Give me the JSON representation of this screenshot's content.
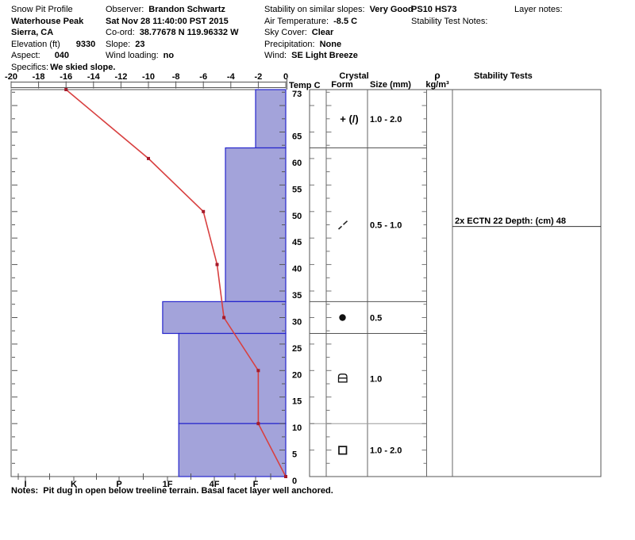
{
  "header": {
    "title": "Snow Pit Profile",
    "location": "Waterhouse Peak",
    "region": "Sierra, CA",
    "elevation_label": "Elevation (ft)",
    "elevation_value": "9330",
    "aspect_label": "Aspect:",
    "aspect_value": "040",
    "specifics_label": "Specifics:",
    "specifics_value": "We skied slope.",
    "observer_label": "Observer:",
    "observer_value": "Brandon Schwartz",
    "datetime": "Sat Nov 28 11:40:00 PST 2015",
    "coord_label": "Co-ord:",
    "coord_value": "38.77678 N 119.96332 W",
    "slope_label": "Slope:",
    "slope_value": "23",
    "wind_loading_label": "Wind loading:",
    "wind_loading_value": "no",
    "stability_slopes_label": "Stability on similar slopes:",
    "stability_slopes_value": "Very Good",
    "air_temp_label": "Air Temperature:",
    "air_temp_value": "-8.5 C",
    "sky_cover_label": "Sky Cover:",
    "sky_cover_value": "Clear",
    "precip_label": "Precipitation:",
    "precip_value": "None",
    "wind_label": "Wind:",
    "wind_value": "SE Light Breeze",
    "pit_code": "PS10 HS73",
    "stability_test_notes_label": "Stability Test Notes:",
    "layer_notes_label": "Layer notes:"
  },
  "notes": {
    "label": "Notes:",
    "text": "Pit dug in open below treeline terrain. Basal facet layer well anchored."
  },
  "chart_data": {
    "type": "composite",
    "description": "Snow pit profile: red temperature line plotted over blue hand-hardness layer bars, with per-layer crystal form / size table and stability test column",
    "temp_axis": {
      "title": "Temp C",
      "min": -20,
      "max": 0,
      "tick_labels": [
        "-20",
        "-18",
        "-16",
        "-14",
        "-12",
        "-10",
        "-8",
        "-6",
        "-4",
        "-2",
        "0"
      ]
    },
    "depth_axis": {
      "unit": "cm",
      "min": 0,
      "max": 73,
      "tick_labels": [
        73,
        65,
        60,
        55,
        50,
        45,
        40,
        35,
        30,
        25,
        20,
        15,
        10,
        5,
        0
      ]
    },
    "hardness_axis": {
      "categories": [
        "I",
        "K",
        "P",
        "1F",
        "4F",
        "F"
      ]
    },
    "temperature_series": {
      "type": "line",
      "points": [
        {
          "temp_c": -16,
          "depth_cm": 73
        },
        {
          "temp_c": -10,
          "depth_cm": 60
        },
        {
          "temp_c": -6,
          "depth_cm": 50
        },
        {
          "temp_c": -5,
          "depth_cm": 40
        },
        {
          "temp_c": -4.5,
          "depth_cm": 30
        },
        {
          "temp_c": -2,
          "depth_cm": 20
        },
        {
          "temp_c": -2,
          "depth_cm": 10
        },
        {
          "temp_c": 0,
          "depth_cm": 0
        }
      ]
    },
    "layers": [
      {
        "top_cm": 73,
        "bottom_cm": 62,
        "hardness": "F",
        "hardness_code": 1.0,
        "glyph": "pp",
        "form_display": "+ (/)",
        "form_icon": "precipitation-particles-with-decomposing-fragments",
        "size_mm": "1.0 - 2.0"
      },
      {
        "top_cm": 62,
        "bottom_cm": 33,
        "hardness": "4F-",
        "hardness_code": 1.73,
        "glyph": "df",
        "form_display": "/",
        "form_icon": "decomposing-fragments",
        "size_mm": "0.5 - 1.0"
      },
      {
        "top_cm": 33,
        "bottom_cm": 27,
        "hardness": "1F",
        "hardness_code": 3.1,
        "glyph": "rg",
        "form_display": "●",
        "form_icon": "rounded-grains",
        "size_mm": "0.5"
      },
      {
        "top_cm": 27,
        "bottom_cm": 10,
        "hardness": "1F-",
        "hardness_code": 2.76,
        "glyph": "fcxr",
        "form_display": "▣",
        "form_icon": "rounding-faceted-particles",
        "size_mm": "1.0"
      },
      {
        "top_cm": 10,
        "bottom_cm": 0,
        "hardness": "1F-",
        "hardness_code": 2.76,
        "glyph": "fc",
        "form_display": "□",
        "form_icon": "faceted-crystals",
        "size_mm": "1.0 - 2.0"
      }
    ],
    "columns": {
      "temp": "Temp C",
      "crystal_group": "Crystal",
      "form": "Form",
      "size": "Size (mm)",
      "rho": "ρ",
      "rho_unit": "kg/m³",
      "stability": "Stability Tests"
    },
    "stability_tests": [
      {
        "text": "2x ECTN 22   Depth: (cm) 48",
        "depth_cm": 48
      }
    ],
    "colors": {
      "bar_fill": "#a3a3da",
      "bar_stroke": "#2525cc",
      "temp_line": "#d84040",
      "temp_marker": "#a51a2a",
      "frame": "#555555",
      "text": "#000000"
    }
  }
}
